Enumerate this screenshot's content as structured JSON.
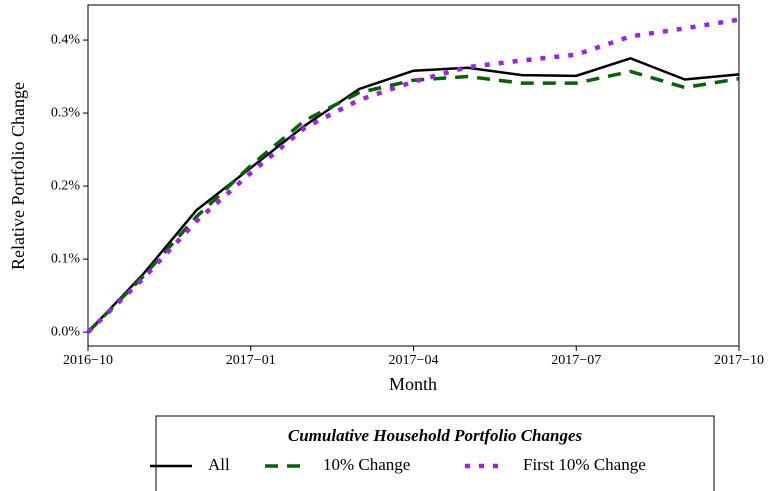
{
  "chart_data": {
    "type": "line",
    "x_label": "Month",
    "y_label": "Relative Portfolio Change",
    "x": [
      "2016-10",
      "2016-11",
      "2016-12",
      "2017-01",
      "2017-02",
      "2017-03",
      "2017-04",
      "2017-05",
      "2017-06",
      "2017-07",
      "2017-08",
      "2017-09",
      "2017-10"
    ],
    "xlim": [
      "2016-10",
      "2017-10"
    ],
    "xticks": [
      {
        "value": "2016-10",
        "label": "2016−10"
      },
      {
        "value": "2017-01",
        "label": "2017−01"
      },
      {
        "value": "2017-04",
        "label": "2017−04"
      },
      {
        "value": "2017-07",
        "label": "2017−07"
      },
      {
        "value": "2017-10",
        "label": "2017−10"
      }
    ],
    "ylim": [
      -0.019,
      0.448
    ],
    "yticks": [
      {
        "value": 0.0,
        "label": "0.0%"
      },
      {
        "value": 0.1,
        "label": "0.1%"
      },
      {
        "value": 0.2,
        "label": "0.2%"
      },
      {
        "value": 0.3,
        "label": "0.3%"
      },
      {
        "value": 0.4,
        "label": "0.4%"
      }
    ],
    "grid": false,
    "legend_title": "Cumulative Household Portfolio Changes",
    "legend_position": "bottom",
    "series": [
      {
        "name": "All",
        "color": "#000000",
        "dash": "solid",
        "values": [
          0,
          0.078,
          0.167,
          0.225,
          0.283,
          0.333,
          0.358,
          0.362,
          0.352,
          0.351,
          0.375,
          0.346,
          0.353
        ]
      },
      {
        "name": "10% Change",
        "color": "#006400",
        "dash": "dashed",
        "values": [
          0,
          0.075,
          0.158,
          0.228,
          0.29,
          0.328,
          0.345,
          0.35,
          0.341,
          0.341,
          0.357,
          0.335,
          0.347
        ]
      },
      {
        "name": "First 10% Change",
        "color": "#a020f0",
        "dash": "dotted",
        "values": [
          0,
          0.072,
          0.152,
          0.218,
          0.28,
          0.318,
          0.343,
          0.363,
          0.372,
          0.38,
          0.405,
          0.416,
          0.428
        ]
      }
    ]
  }
}
